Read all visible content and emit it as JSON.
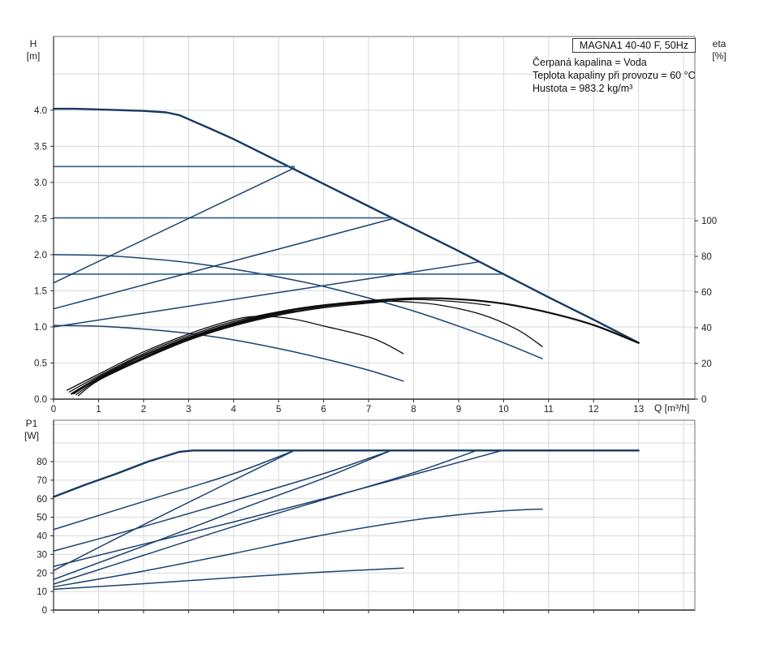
{
  "header": {
    "model_label": "MAGNA1 40-40 F, 50Hz",
    "info_lines": [
      "Čerpaná kapalina = Voda",
      "Teplota kapaliny při provozu = 60 °C",
      "Hustota = 983.2 kg/m³"
    ]
  },
  "colors": {
    "blue": "#1c4270",
    "blue_dark": "#153a63",
    "steel": "#2c5f92",
    "black": "#0d0d0d",
    "grid": "#d9d9d9",
    "frame": "#707070",
    "axis": "#2b2b2b",
    "text": "#222222"
  },
  "chart_data": [
    {
      "id": "hq",
      "type": "line",
      "title": "MAGNA1 40-40 F, 50Hz",
      "xlabel": "Q [m³/h]",
      "ylabel_left": {
        "label": "H",
        "unit": "[m]"
      },
      "ylabel_right": {
        "label": "eta",
        "unit": "[%]"
      },
      "xlim": [
        0,
        14.25
      ],
      "ylim": [
        0,
        5.02
      ],
      "ylim_right": [
        0,
        203.2
      ],
      "x_ticks": [
        0,
        1,
        2,
        3,
        4,
        5,
        6,
        7,
        8,
        9,
        10,
        11,
        12,
        13
      ],
      "x_tick_labels": [
        "0",
        "1",
        "2",
        "3",
        "4",
        "5",
        "6",
        "7",
        "8",
        "9",
        "10",
        "11",
        "12",
        "13"
      ],
      "show_x_labels": true,
      "y_ticks_left": [
        0,
        0.5,
        1,
        1.5,
        2,
        2.5,
        3,
        3.5,
        4
      ],
      "y_tick_labels_left": [
        "0.0",
        "0.5",
        "1.0",
        "1.5",
        "2.0",
        "2.5",
        "3.0",
        "3.5",
        "4.0"
      ],
      "y_ticks_right": [
        0,
        20,
        40,
        60,
        80,
        100
      ],
      "y_tick_labels_right": [
        "0",
        "20",
        "40",
        "60",
        "80",
        "100"
      ],
      "grid_x": [
        1,
        2,
        3,
        4,
        5,
        6,
        7,
        8,
        9,
        10,
        11,
        12,
        13,
        14
      ],
      "grid_y": [
        0.5,
        1,
        1.5,
        2,
        2.5,
        3,
        3.5,
        4,
        4.5
      ],
      "series": [
        {
          "name": "max-speed-curve",
          "axis": "left",
          "color": "blue_dark",
          "width": 2.4,
          "smooth": false,
          "points": [
            [
              0,
              4.02
            ],
            [
              0.5,
              4.02
            ],
            [
              1,
              4.01
            ],
            [
              1.5,
              4.0
            ],
            [
              2,
              3.99
            ],
            [
              2.5,
              3.97
            ],
            [
              2.8,
              3.93
            ],
            [
              3.5,
              3.74
            ],
            [
              4,
              3.6
            ],
            [
              5,
              3.29
            ],
            [
              6,
              2.98
            ],
            [
              7,
              2.67
            ],
            [
              8,
              2.36
            ],
            [
              9,
              2.05
            ],
            [
              10,
              1.73
            ],
            [
              11,
              1.41
            ],
            [
              12,
              1.1
            ],
            [
              13,
              0.78
            ]
          ]
        },
        {
          "name": "mid-speed-curve",
          "axis": "left",
          "color": "blue",
          "width": 1.5,
          "smooth": true,
          "points": [
            [
              0,
              2.0
            ],
            [
              1,
              1.99
            ],
            [
              2,
              1.95
            ],
            [
              3,
              1.89
            ],
            [
              4,
              1.8
            ],
            [
              5,
              1.69
            ],
            [
              6,
              1.56
            ],
            [
              7,
              1.4
            ],
            [
              8,
              1.22
            ],
            [
              9,
              1.01
            ],
            [
              10,
              0.78
            ],
            [
              10.86,
              0.56
            ]
          ]
        },
        {
          "name": "min-speed-curve",
          "axis": "left",
          "color": "blue",
          "width": 1.5,
          "smooth": true,
          "points": [
            [
              0,
              1.02
            ],
            [
              1,
              1.01
            ],
            [
              2,
              0.97
            ],
            [
              3,
              0.91
            ],
            [
              4,
              0.82
            ],
            [
              5,
              0.7
            ],
            [
              6,
              0.56
            ],
            [
              7,
              0.4
            ],
            [
              7.77,
              0.25
            ]
          ]
        },
        {
          "name": "const-pressure-3.2m",
          "axis": "left",
          "color": "steel",
          "width": 1.6,
          "smooth": false,
          "points": [
            [
              0,
              3.22
            ],
            [
              5.35,
              3.22
            ]
          ]
        },
        {
          "name": "const-pressure-2.5m",
          "axis": "left",
          "color": "steel",
          "width": 1.6,
          "smooth": false,
          "points": [
            [
              0,
              2.51
            ],
            [
              7.55,
              2.51
            ]
          ]
        },
        {
          "name": "const-pressure-1.7m",
          "axis": "left",
          "color": "steel",
          "width": 1.6,
          "smooth": false,
          "points": [
            [
              0,
              1.73
            ],
            [
              9.95,
              1.73
            ]
          ]
        },
        {
          "name": "prop-pressure-3.2m",
          "axis": "left",
          "color": "blue",
          "width": 1.5,
          "smooth": false,
          "points": [
            [
              0,
              1.61
            ],
            [
              5.35,
              3.2
            ]
          ]
        },
        {
          "name": "prop-pressure-2.5m",
          "axis": "left",
          "color": "blue",
          "width": 1.5,
          "smooth": false,
          "points": [
            [
              0,
              1.25
            ],
            [
              7.55,
              2.5
            ]
          ]
        },
        {
          "name": "prop-pressure-1.7m",
          "axis": "left",
          "color": "blue",
          "width": 1.5,
          "smooth": false,
          "points": [
            [
              0,
              1.0
            ],
            [
              9.45,
              1.9
            ]
          ]
        },
        {
          "name": "eta-max-speed",
          "axis": "right",
          "color": "black",
          "width": 2.2,
          "smooth": true,
          "points": [
            [
              0.4,
              3
            ],
            [
              1,
              12
            ],
            [
              1.5,
              18.5
            ],
            [
              2,
              24.5
            ],
            [
              3,
              34.5
            ],
            [
              4,
              42.5
            ],
            [
              5,
              48.5
            ],
            [
              6,
              52.5
            ],
            [
              7,
              55
            ],
            [
              8,
              56.5
            ],
            [
              9,
              56
            ],
            [
              10,
              53.5
            ],
            [
              11,
              48.5
            ],
            [
              12,
              41.5
            ],
            [
              13,
              31.5
            ]
          ]
        },
        {
          "name": "eta-mid-speed",
          "axis": "right",
          "color": "black",
          "width": 1.3,
          "smooth": true,
          "points": [
            [
              0.35,
              4
            ],
            [
              1,
              13
            ],
            [
              2,
              25.5
            ],
            [
              3,
              35.5
            ],
            [
              4,
              43.5
            ],
            [
              5,
              49
            ],
            [
              6,
              52.8
            ],
            [
              7,
              54.5
            ],
            [
              7.6,
              54.8
            ],
            [
              8.5,
              53
            ],
            [
              9.5,
              47.5
            ],
            [
              10.3,
              39
            ],
            [
              10.86,
              29.5
            ]
          ]
        },
        {
          "name": "eta-min-speed",
          "axis": "right",
          "color": "black",
          "width": 1.3,
          "smooth": true,
          "points": [
            [
              0.3,
              5
            ],
            [
              1,
              14
            ],
            [
              2,
              26.5
            ],
            [
              3,
              36.5
            ],
            [
              4,
              44.5
            ],
            [
              4.6,
              46.4
            ],
            [
              5.3,
              45
            ],
            [
              6,
              41
            ],
            [
              7.1,
              34
            ],
            [
              7.77,
              25.5
            ]
          ]
        },
        {
          "name": "eta-const-3.2m",
          "axis": "right",
          "color": "black",
          "width": 1.3,
          "smooth": true,
          "points": [
            [
              0.45,
              3
            ],
            [
              1,
              11.5
            ],
            [
              2,
              23.5
            ],
            [
              3,
              34
            ],
            [
              4,
              42
            ],
            [
              5,
              48
            ],
            [
              5.35,
              49.3
            ]
          ]
        },
        {
          "name": "eta-const-2.5m",
          "axis": "right",
          "color": "black",
          "width": 1.3,
          "smooth": true,
          "points": [
            [
              0.5,
              2.5
            ],
            [
              1,
              11
            ],
            [
              2,
              23
            ],
            [
              3,
              33.5
            ],
            [
              4,
              41.5
            ],
            [
              5,
              47.5
            ],
            [
              6,
              51.8
            ],
            [
              7,
              54.2
            ],
            [
              7.55,
              55
            ]
          ]
        },
        {
          "name": "eta-const-1.7m",
          "axis": "right",
          "color": "black",
          "width": 1.3,
          "smooth": true,
          "points": [
            [
              0.55,
              2
            ],
            [
              1,
              10.5
            ],
            [
              2,
              22.5
            ],
            [
              3,
              33
            ],
            [
              4,
              41
            ],
            [
              5,
              47
            ],
            [
              6,
              51.2
            ],
            [
              7,
              53.8
            ],
            [
              8,
              55.8
            ],
            [
              9,
              54.5
            ],
            [
              9.7,
              52.5
            ]
          ]
        }
      ]
    },
    {
      "id": "p1",
      "type": "line",
      "title": "",
      "xlabel": "",
      "ylabel_left": {
        "label": "P1",
        "unit": "[W]"
      },
      "xlim": [
        0,
        14.25
      ],
      "ylim": [
        0,
        102.3
      ],
      "x_ticks": [
        0,
        1,
        2,
        3,
        4,
        5,
        6,
        7,
        8,
        9,
        10,
        11,
        12,
        13
      ],
      "x_tick_labels": [],
      "show_x_labels": false,
      "y_ticks_left": [
        0,
        10,
        20,
        30,
        40,
        50,
        60,
        70,
        80
      ],
      "y_tick_labels_left": [
        "0",
        "10",
        "20",
        "30",
        "40",
        "50",
        "60",
        "70",
        "80"
      ],
      "y_ticks_right": [],
      "y_tick_labels_right": [],
      "grid_x": [
        1,
        2,
        3,
        4,
        5,
        6,
        7,
        8,
        9,
        10,
        11,
        12,
        13,
        14
      ],
      "grid_y": [
        10,
        20,
        30,
        40,
        50,
        60,
        70,
        80,
        90,
        100
      ],
      "series": [
        {
          "name": "power-max-speed",
          "axis": "left",
          "color": "blue_dark",
          "width": 2.4,
          "smooth": false,
          "points": [
            [
              0,
              61
            ],
            [
              0.7,
              67.5
            ],
            [
              1.4,
              73.5
            ],
            [
              2.1,
              80
            ],
            [
              2.8,
              85.3
            ],
            [
              3.1,
              86
            ],
            [
              13,
              86
            ]
          ]
        },
        {
          "name": "power-const-3.2m",
          "axis": "left",
          "color": "blue",
          "width": 1.5,
          "smooth": true,
          "points": [
            [
              0,
              43.4
            ],
            [
              2,
              58.5
            ],
            [
              4,
              73.5
            ],
            [
              5.35,
              86
            ]
          ]
        },
        {
          "name": "power-const-2.5m",
          "axis": "left",
          "color": "blue",
          "width": 1.5,
          "smooth": true,
          "points": [
            [
              0,
              31.8
            ],
            [
              2,
              45
            ],
            [
              4,
              59
            ],
            [
              6,
              73.5
            ],
            [
              7.5,
              86
            ]
          ]
        },
        {
          "name": "power-const-1.7m",
          "axis": "left",
          "color": "blue",
          "width": 1.5,
          "smooth": true,
          "points": [
            [
              0,
              23.5
            ],
            [
              2,
              35.5
            ],
            [
              4,
              47.5
            ],
            [
              6,
              60
            ],
            [
              8,
              73
            ],
            [
              9.97,
              86
            ]
          ]
        },
        {
          "name": "power-prop-3.2m",
          "axis": "left",
          "color": "blue",
          "width": 1.5,
          "smooth": true,
          "points": [
            [
              0,
              21.3
            ],
            [
              2,
              46
            ],
            [
              4,
              70
            ],
            [
              5.35,
              86
            ]
          ]
        },
        {
          "name": "power-prop-2.5m",
          "axis": "left",
          "color": "blue",
          "width": 1.5,
          "smooth": true,
          "points": [
            [
              0,
              16.5
            ],
            [
              2,
              34.5
            ],
            [
              4,
              53
            ],
            [
              6,
              71
            ],
            [
              7.5,
              86
            ]
          ]
        },
        {
          "name": "power-prop-1.7m",
          "axis": "left",
          "color": "blue",
          "width": 1.5,
          "smooth": true,
          "points": [
            [
              0,
              14
            ],
            [
              2,
              29.5
            ],
            [
              4,
              45
            ],
            [
              6,
              59.5
            ],
            [
              8,
              74
            ],
            [
              9.4,
              86
            ]
          ]
        },
        {
          "name": "power-mid-speed",
          "axis": "left",
          "color": "blue",
          "width": 1.5,
          "smooth": true,
          "points": [
            [
              0,
              12.5
            ],
            [
              2,
              21
            ],
            [
              4,
              30.5
            ],
            [
              6,
              40.5
            ],
            [
              8,
              48.5
            ],
            [
              9.5,
              52.5
            ],
            [
              10.4,
              54
            ],
            [
              10.86,
              54.4
            ]
          ]
        },
        {
          "name": "power-min-speed",
          "axis": "left",
          "color": "blue",
          "width": 1.5,
          "smooth": true,
          "points": [
            [
              0,
              11.2
            ],
            [
              2,
              14.2
            ],
            [
              4,
              17.5
            ],
            [
              6,
              20.5
            ],
            [
              7.77,
              22.6
            ]
          ]
        }
      ]
    }
  ]
}
